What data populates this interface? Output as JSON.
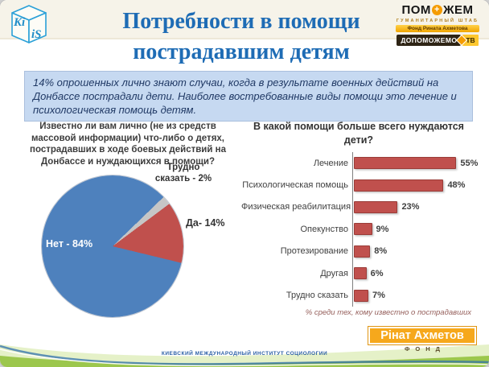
{
  "slide": {
    "title_line1": "Потребности в помощи",
    "title_line2": "пострадавшим детям",
    "summary": "14% опрошенных лично знают случаи, когда в результате военных действий на Донбассе пострадали дети. Наиболее востребованные виды помощи  это лечение и психологическая помощь детям.",
    "footer_text": "КИЕВСКИЙ МЕЖДУНАРОДНЫЙ ИНСТИТУТ СОЦИОЛОГИИ"
  },
  "logos": {
    "kiis_left": "Ki",
    "kiis_right": "iS",
    "pomozhem_part1": "ПОМ",
    "pomozhem_plus": "+",
    "pomozhem_part2": "ЖЕМ",
    "pomozhem_subtitle": "ГУМАНИТАРНЫЙ ШТАБ",
    "pomozhem_fund_bar": "Фонд Рината Ахметова",
    "dopomozhemo": "ДОПОМОЖЕМО",
    "tv": "ТВ",
    "akhmetov_name": "Рінат Ахметов",
    "akhmetov_fund": "ФОНД"
  },
  "chart_data": [
    {
      "type": "pie",
      "title": "Известно ли вам лично (не из средств массовой информации) что-либо о детях, пострадавших в ходе боевых действий на Донбассе и нуждающихся в помощи?",
      "labels": [
        "Нет",
        "Да",
        "Трудно сказать"
      ],
      "values": [
        84,
        14,
        2
      ],
      "colors": [
        "#4e81bd",
        "#c0504d",
        "#c6c6c6"
      ],
      "display_labels": {
        "net": "Нет - 84%",
        "da": "Да- 14%",
        "trudno": "Трудно сказать - 2%"
      },
      "layout": {
        "start_angle_deg": 46,
        "draw_order": [
          2,
          1,
          0
        ],
        "legend": "none",
        "labels_position": "outside-right, Нет inside"
      }
    },
    {
      "type": "bar",
      "orientation": "horizontal",
      "title": "В какой помощи больше всего нуждаются дети?",
      "categories": [
        "Лечение",
        "Психологическая помощь",
        "Физическая реабилитация",
        "Опекунство",
        "Протезирование",
        "Другая",
        "Трудно сказать"
      ],
      "values": [
        55,
        48,
        23,
        9,
        8,
        6,
        7
      ],
      "value_labels": [
        "55%",
        "48%",
        "23%",
        "9%",
        "8%",
        "6%",
        "7%"
      ],
      "bar_color": "#c0504d",
      "xlim": [
        0,
        60
      ],
      "grid": false,
      "legend": false,
      "footnote": "% среди тех, кому известно о пострадавших"
    }
  ],
  "colors": {
    "title_blue": "#1e6cb5",
    "summary_bg": "#c6d9f1",
    "summary_text": "#1f3864",
    "bar_red": "#c0504d",
    "pie_blue": "#4e81bd",
    "pie_red": "#c0504d",
    "pie_gray": "#c6c6c6",
    "footnote_red": "#96605c",
    "accent_orange": "#f6a81c",
    "wave_green": "#93c23f"
  }
}
